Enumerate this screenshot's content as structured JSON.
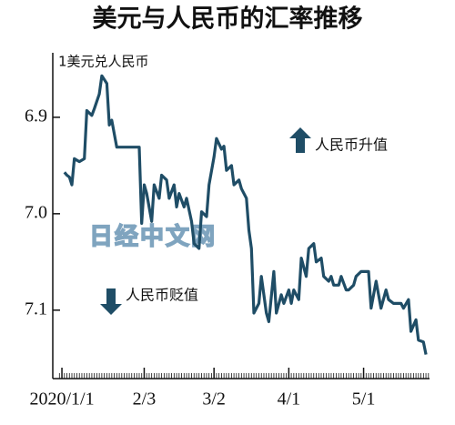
{
  "chart_data": {
    "type": "line",
    "title": "美元与人民币的汇率推移",
    "y_label": "1美元兑人民币",
    "annotations": [
      "人民币升值",
      "人民币贬值"
    ],
    "watermark": "日经中文网",
    "color": "#1f4d66",
    "y_inverted": true,
    "ylim": [
      6.835,
      7.17
    ],
    "yticks": [
      6.9,
      {
        "value": 7,
        "label": "7.0"
      },
      7.1
    ],
    "xlim": [
      "2019-12-31",
      "2020-05-27"
    ],
    "xticks": [
      {
        "value": "2020-01-01",
        "label": "2020/1/1"
      },
      {
        "value": "2020-02-03",
        "label": "2/3"
      },
      {
        "value": "2020-03-02",
        "label": "3/2"
      },
      {
        "value": "2020-04-01",
        "label": "4/1"
      },
      {
        "value": "2020-05-01",
        "label": "5/1"
      }
    ],
    "x": [
      "2020-01-02",
      "2020-01-03",
      "2020-01-04",
      "2020-01-05",
      "2020-01-06",
      "2020-01-08",
      "2020-01-10",
      "2020-01-11",
      "2020-01-13",
      "2020-01-14",
      "2020-01-16",
      "2020-01-17",
      "2020-01-19",
      "2020-01-20",
      "2020-01-21",
      "2020-01-23",
      "2020-02-01",
      "2020-02-02",
      "2020-02-03",
      "2020-02-04",
      "2020-02-06",
      "2020-02-07",
      "2020-02-09",
      "2020-02-10",
      "2020-02-12",
      "2020-02-13",
      "2020-02-15",
      "2020-02-16",
      "2020-02-17",
      "2020-02-19",
      "2020-02-20",
      "2020-02-22",
      "2020-02-23",
      "2020-02-25",
      "2020-02-26",
      "2020-02-28",
      "2020-02-29",
      "2020-03-02",
      "2020-03-03",
      "2020-03-05",
      "2020-03-06",
      "2020-03-07",
      "2020-03-09",
      "2020-03-10",
      "2020-03-12",
      "2020-03-13",
      "2020-03-15",
      "2020-03-16",
      "2020-03-17",
      "2020-03-18",
      "2020-03-20",
      "2020-03-21",
      "2020-03-23",
      "2020-03-24",
      "2020-03-26",
      "2020-03-27",
      "2020-03-29",
      "2020-03-30",
      "2020-04-01",
      "2020-04-02",
      "2020-04-03",
      "2020-04-05",
      "2020-04-06",
      "2020-04-08",
      "2020-04-09",
      "2020-04-11",
      "2020-04-12",
      "2020-04-14",
      "2020-04-15",
      "2020-04-17",
      "2020-04-18",
      "2020-04-19",
      "2020-04-21",
      "2020-04-22",
      "2020-04-24",
      "2020-04-25",
      "2020-04-27",
      "2020-04-28",
      "2020-04-30",
      "2020-05-03",
      "2020-05-04",
      "2020-05-06",
      "2020-05-07",
      "2020-05-08",
      "2020-05-10",
      "2020-05-11",
      "2020-05-13",
      "2020-05-14",
      "2020-05-16",
      "2020-05-17",
      "2020-05-19",
      "2020-05-20",
      "2020-05-22",
      "2020-05-23",
      "2020-05-25",
      "2020-05-26"
    ],
    "values": [
      6.957,
      6.96,
      6.962,
      6.97,
      6.943,
      6.946,
      6.943,
      6.893,
      6.898,
      6.891,
      6.876,
      6.857,
      6.865,
      6.908,
      6.903,
      6.931,
      6.931,
      7.01,
      6.97,
      6.979,
      7.008,
      6.97,
      6.984,
      6.96,
      6.965,
      6.984,
      6.97,
      6.993,
      6.979,
      6.993,
      6.984,
      7.008,
      7.031,
      7.036,
      6.998,
      7.003,
      6.97,
      6.941,
      6.922,
      6.933,
      6.93,
      6.955,
      6.95,
      6.97,
      6.965,
      6.974,
      6.984,
      7.017,
      7.036,
      7.103,
      7.093,
      7.065,
      7.103,
      7.112,
      7.06,
      7.103,
      7.084,
      7.093,
      7.079,
      7.093,
      7.079,
      7.089,
      7.046,
      7.065,
      7.036,
      7.031,
      7.05,
      7.046,
      7.065,
      7.07,
      7.065,
      7.074,
      7.074,
      7.065,
      7.079,
      7.079,
      7.074,
      7.065,
      7.06,
      7.06,
      7.098,
      7.07,
      7.084,
      7.098,
      7.079,
      7.089,
      7.093,
      7.093,
      7.093,
      7.098,
      7.089,
      7.122,
      7.11,
      7.131,
      7.133,
      7.146
    ]
  }
}
